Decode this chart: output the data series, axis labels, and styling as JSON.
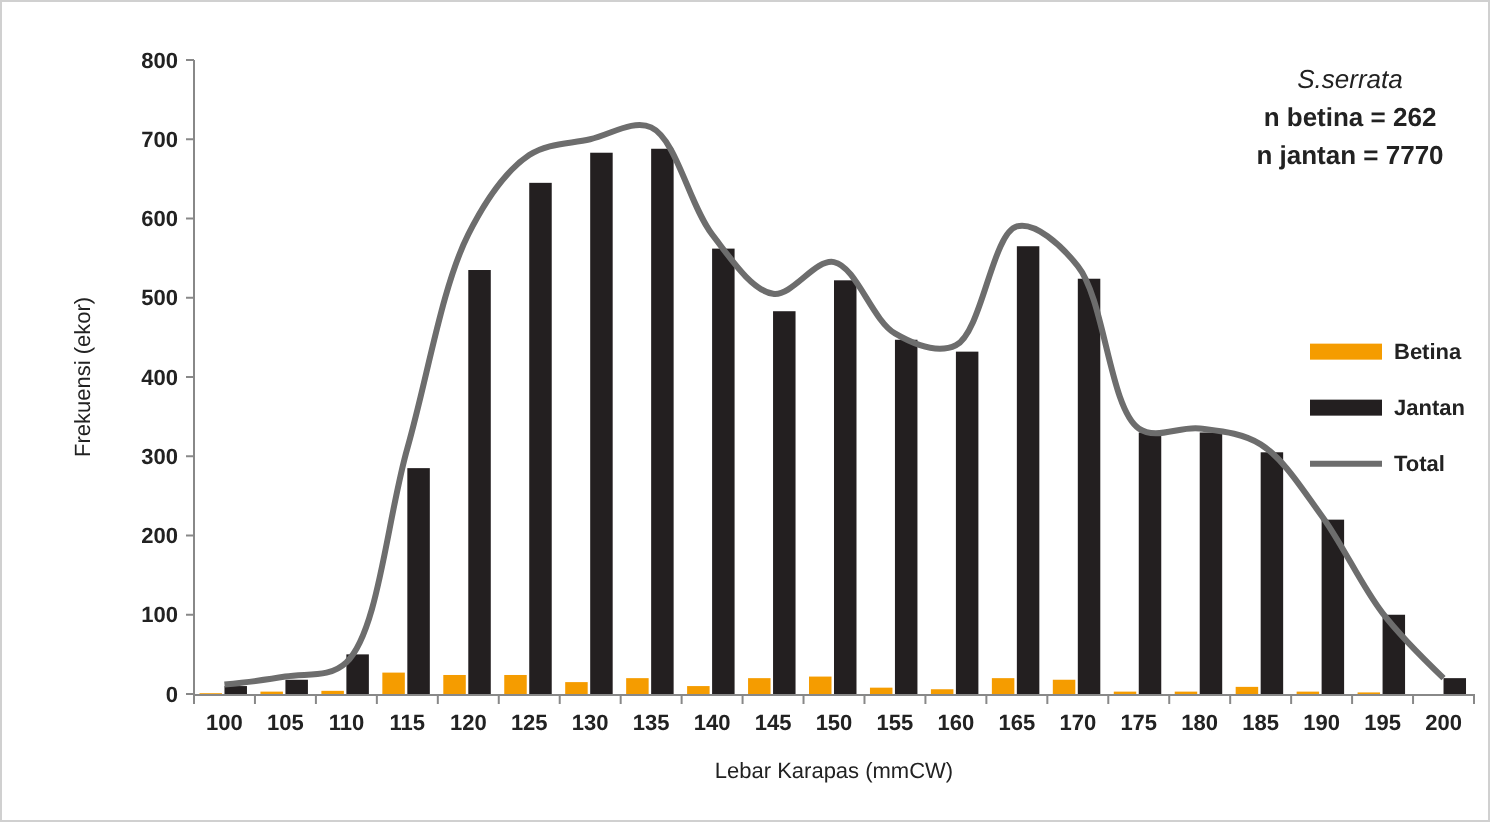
{
  "chart_data": {
    "type": "bar",
    "xlabel": "Lebar Karapas (mmCW)",
    "ylabel": "Frekuensi (ekor)",
    "categories": [
      "100",
      "105",
      "110",
      "115",
      "120",
      "125",
      "130",
      "135",
      "140",
      "145",
      "150",
      "155",
      "160",
      "165",
      "170",
      "175",
      "180",
      "185",
      "190",
      "195",
      "200"
    ],
    "series": [
      {
        "name": "Betina",
        "color": "#f59c00",
        "values": [
          1,
          3,
          4,
          27,
          24,
          24,
          15,
          20,
          10,
          20,
          22,
          8,
          6,
          20,
          18,
          3,
          3,
          9,
          3,
          2,
          0
        ]
      },
      {
        "name": "Jantan",
        "color": "#231f20",
        "values": [
          10,
          18,
          50,
          285,
          535,
          645,
          683,
          688,
          562,
          483,
          522,
          447,
          432,
          565,
          524,
          330,
          330,
          305,
          220,
          100,
          20
        ]
      },
      {
        "name": "Total",
        "type": "line",
        "color": "#6d6d6d",
        "values": [
          12,
          22,
          40,
          310,
          580,
          680,
          700,
          715,
          580,
          505,
          545,
          455,
          440,
          590,
          540,
          335,
          335,
          315,
          225,
          102,
          20
        ]
      }
    ],
    "ylim": [
      0,
      800
    ],
    "yticks": [
      0,
      100,
      200,
      300,
      400,
      500,
      600,
      700,
      800
    ],
    "grid": false,
    "legend": "right",
    "line_style": "solid",
    "marker": "none",
    "annotations": [
      "S.serrata",
      "n betina = 262",
      "n jantan = 7770"
    ]
  }
}
